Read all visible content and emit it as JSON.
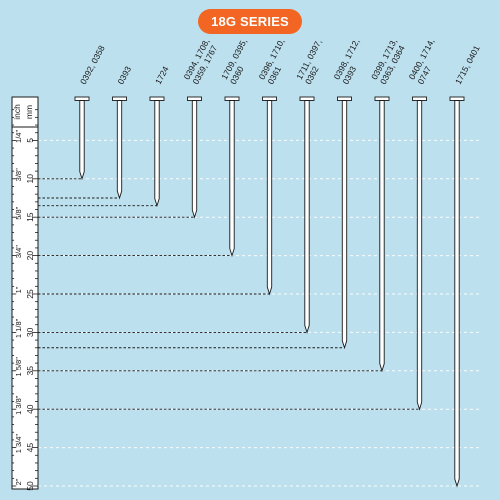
{
  "series_badge": "18G SERIES",
  "ruler": {
    "inch_header": "inch",
    "mm_header": "mm",
    "inch_labels": [
      "1/4\"",
      "3/8\"",
      "5/8\"",
      "3/4\"",
      "1\"",
      "1 1/8\"",
      "1 5/8\"",
      "1 3/8\"",
      "1 3/4\"",
      "2\""
    ],
    "mm_labels": [
      "5",
      "10",
      "15",
      "20",
      "25",
      "30",
      "35",
      "40",
      "45",
      "50"
    ]
  },
  "nails": [
    {
      "codes": [
        "0392, 0358"
      ],
      "length_mm": 10
    },
    {
      "codes": [
        "0393"
      ],
      "length_mm": 12.5
    },
    {
      "codes": [
        "1724"
      ],
      "length_mm": 13.5
    },
    {
      "codes": [
        "0394, 1708,",
        "0359, 1767"
      ],
      "length_mm": 15
    },
    {
      "codes": [
        "1709, 0395,",
        "0360"
      ],
      "length_mm": 20
    },
    {
      "codes": [
        "0396, 1710,",
        "0361"
      ],
      "length_mm": 25
    },
    {
      "codes": [
        "1711, 0397,",
        "0362"
      ],
      "length_mm": 30
    },
    {
      "codes": [
        "0398, 1712,",
        "0393"
      ],
      "length_mm": 32
    },
    {
      "codes": [
        "0399, 1713,",
        "0363, 0364"
      ],
      "length_mm": 35
    },
    {
      "codes": [
        "0400, 1714,",
        "0747"
      ],
      "length_mm": 40
    },
    {
      "codes": [
        "1715, 0401"
      ],
      "length_mm": 50
    }
  ],
  "colors": {
    "background": "#bde0ef",
    "badge": "#f26522",
    "nail": "#ffffff",
    "nail_outline": "#1a1a1a",
    "grid": "#ffffff"
  }
}
